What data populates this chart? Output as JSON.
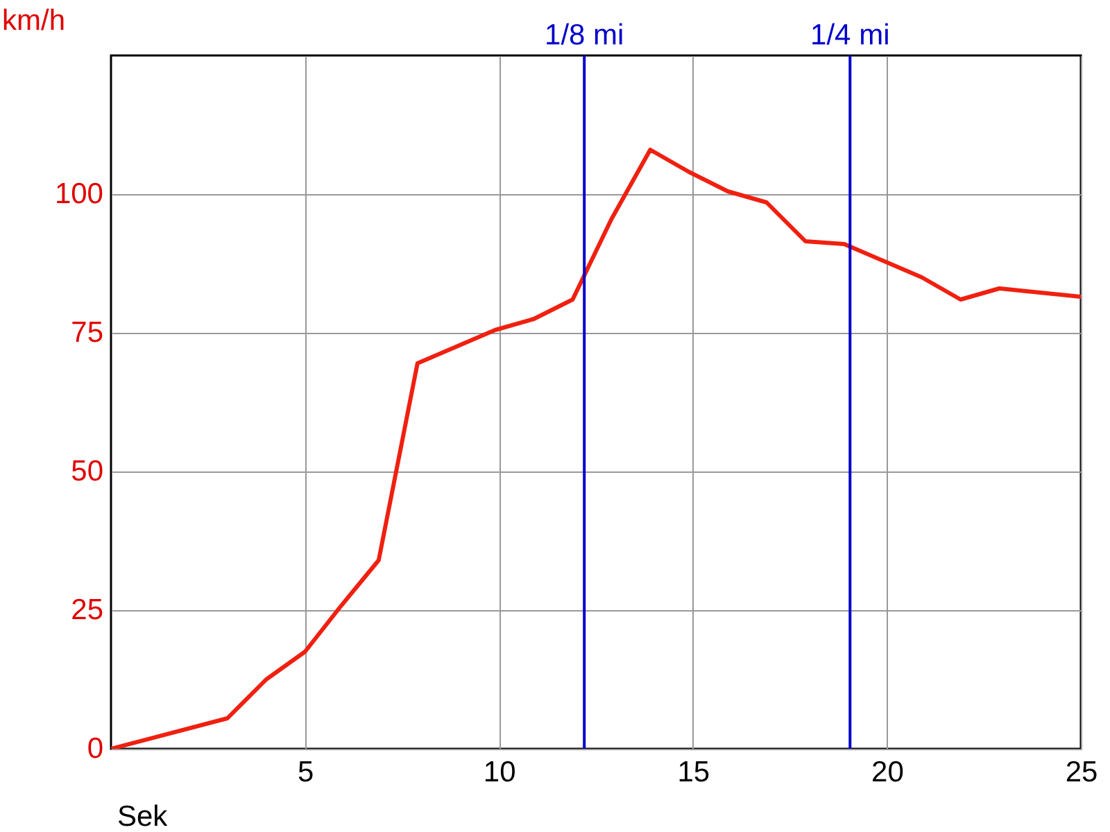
{
  "chart_data": {
    "type": "line",
    "xlabel": "Sek",
    "ylabel": "km/h",
    "x": [
      0,
      3,
      4,
      5,
      5.9,
      6.9,
      7.9,
      8.9,
      9.9,
      10.9,
      11.9,
      12.9,
      13.9,
      14.9,
      15.9,
      16.9,
      17.9,
      18.9,
      19.9,
      20.9,
      21.9,
      22.9,
      25
    ],
    "series": [
      {
        "color": "#f02010",
        "values": [
          0,
          5.5,
          12.5,
          17.5,
          25.5,
          34,
          69.5,
          72.5,
          75.5,
          77.5,
          81,
          95.5,
          108,
          104,
          100.5,
          98.5,
          91.5,
          91,
          88,
          85,
          81,
          83,
          81.5
        ]
      }
    ],
    "xlim": [
      0,
      25
    ],
    "xticks": [
      5,
      10,
      15,
      20,
      25
    ],
    "ylim": [
      0,
      125
    ],
    "yticks": [
      0,
      25,
      50,
      75,
      100
    ],
    "grid": true,
    "marker": "none",
    "line_style": "solid",
    "ref_lines": [
      {
        "axis": "x",
        "value": 12.2,
        "label": "1/8 mi",
        "color": "#0000cc"
      },
      {
        "axis": "x",
        "value": 19.05,
        "label": "1/4 mi",
        "color": "#0000cc"
      }
    ]
  }
}
